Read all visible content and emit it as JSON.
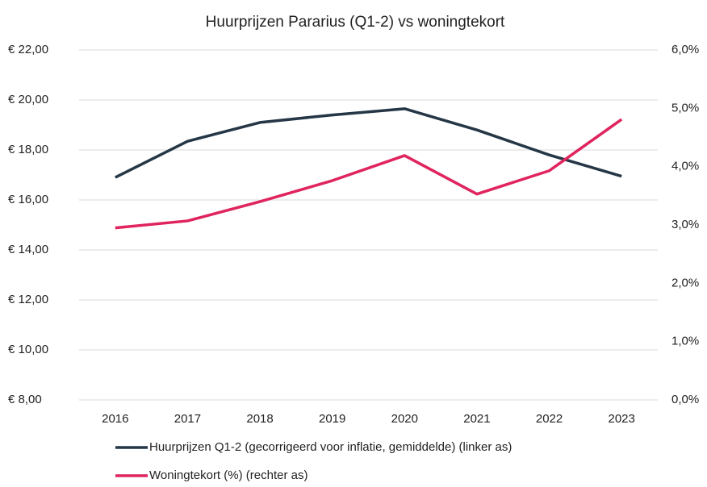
{
  "chart_data": {
    "type": "line",
    "title": "Huurprijzen Pararius (Q1-2)  vs woningtekort",
    "categories": [
      "2016",
      "2017",
      "2018",
      "2019",
      "2020",
      "2021",
      "2022",
      "2023"
    ],
    "series": [
      {
        "name": "Huurprijzen Q1-2 (gecorrigeerd voor inflatie, gemiddelde) (linker as)",
        "color": "#253746",
        "values": [
          16.9,
          18.35,
          19.1,
          19.4,
          19.65,
          18.8,
          17.8,
          16.95
        ]
      },
      {
        "name": "Woningtekort (%) (rechter as)",
        "color": "#e0245e",
        "axis": "y2",
        "values": [
          2.95,
          3.07,
          3.4,
          3.76,
          4.19,
          3.53,
          3.93,
          4.81
        ]
      }
    ],
    "ylim": [
      8,
      22
    ],
    "yticks": [
      {
        "value": 8,
        "label": "€ 8,00"
      },
      {
        "value": 10,
        "label": "€ 10,00"
      },
      {
        "value": 12,
        "label": "€ 12,00"
      },
      {
        "value": 14,
        "label": "€ 14,00"
      },
      {
        "value": 16,
        "label": "€ 16,00"
      },
      {
        "value": 18,
        "label": "€ 18,00"
      },
      {
        "value": 20,
        "label": "€ 20,00"
      },
      {
        "value": 22,
        "label": "€ 22,00"
      }
    ],
    "y2lim": [
      0,
      6
    ],
    "y2ticks": [
      {
        "value": 0,
        "label": "0,0%"
      },
      {
        "value": 1,
        "label": "1,0%"
      },
      {
        "value": 2,
        "label": "2,0%"
      },
      {
        "value": 3,
        "label": "3,0%"
      },
      {
        "value": 4,
        "label": "4,0%"
      },
      {
        "value": 5,
        "label": "5,0%"
      },
      {
        "value": 6,
        "label": "6,0%"
      }
    ],
    "grid": true
  }
}
